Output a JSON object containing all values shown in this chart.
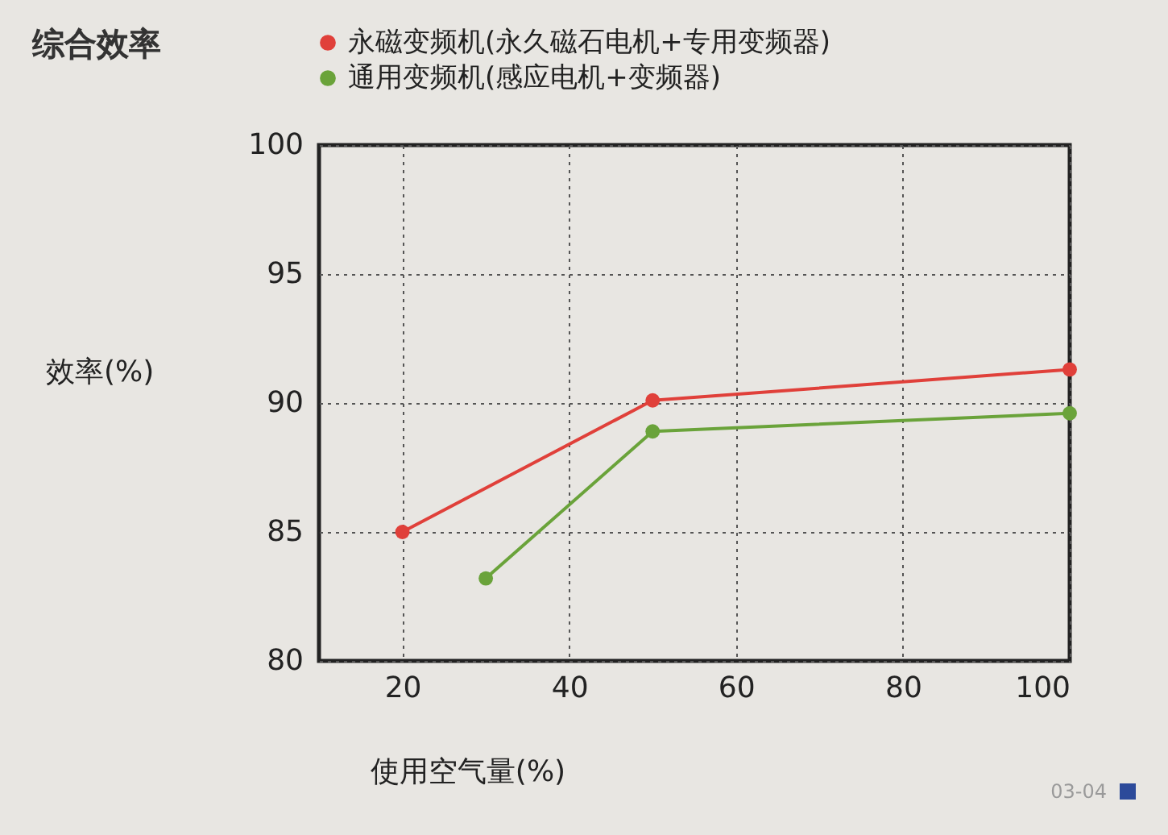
{
  "chart_data": {
    "type": "line",
    "title": "综合效率",
    "xlabel": "使用空气量(%)",
    "ylabel": "效率(%)",
    "series": [
      {
        "name": "永磁变频机(永久磁石电机+专用变频器)",
        "color": "#e0403a",
        "x": [
          20,
          50,
          100
        ],
        "values": [
          85.0,
          90.1,
          91.3
        ]
      },
      {
        "name": "通用变频机(感应电机+变频器)",
        "color": "#6aa33a",
        "x": [
          30,
          50,
          100
        ],
        "values": [
          83.2,
          88.9,
          89.6
        ]
      }
    ],
    "xlim": [
      10,
      100
    ],
    "xticks": [
      20,
      40,
      60,
      80,
      100
    ],
    "ylim": [
      80,
      100
    ],
    "yticks": [
      80,
      85,
      90,
      95,
      100
    ],
    "grid": true,
    "legend": "top",
    "marker": "circle",
    "line_style": "solid",
    "annotations": [
      "03-04"
    ]
  }
}
